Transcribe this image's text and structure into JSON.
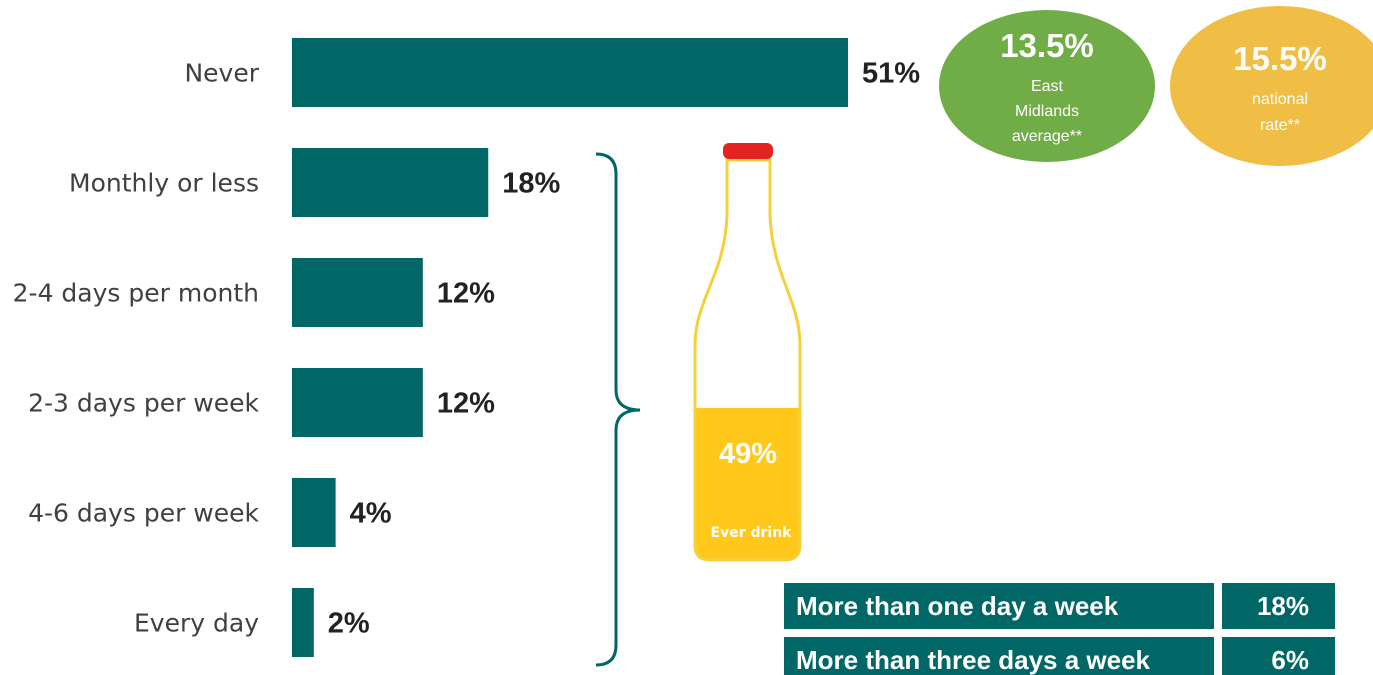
{
  "chart_data": {
    "type": "bar",
    "orientation": "horizontal",
    "categories": [
      "Never",
      "Monthly or less",
      "2-4 days per month",
      "2-3 days per week",
      "4-6 days per week",
      "Every day"
    ],
    "values": [
      51,
      18,
      12,
      12,
      4,
      2
    ],
    "value_labels": [
      "51%",
      "18%",
      "12%",
      "12%",
      "4%",
      "2%"
    ],
    "xlim": [
      0,
      51
    ],
    "grid": false,
    "bar_color": "#006666"
  },
  "bubbles": [
    {
      "value": "13.5%",
      "lines": [
        "East",
        "Midlands",
        "average**"
      ],
      "color": "#70AD47"
    },
    {
      "value": "15.5%",
      "lines": [
        "national",
        "rate**"
      ],
      "color": "#F0BE45"
    }
  ],
  "bottle": {
    "fill_fraction": 0.49,
    "value": "49%",
    "caption": "Ever drink",
    "liquid_color": "#FFC81A",
    "outline_color": "#F5D03A",
    "cap_color": "#E32222"
  },
  "summary": [
    {
      "label": "More than one day a week",
      "value": "18%"
    },
    {
      "label": "More than three days a week",
      "value": "6%"
    }
  ],
  "colors": {
    "teal": "#006666",
    "label_text": "#404040"
  }
}
